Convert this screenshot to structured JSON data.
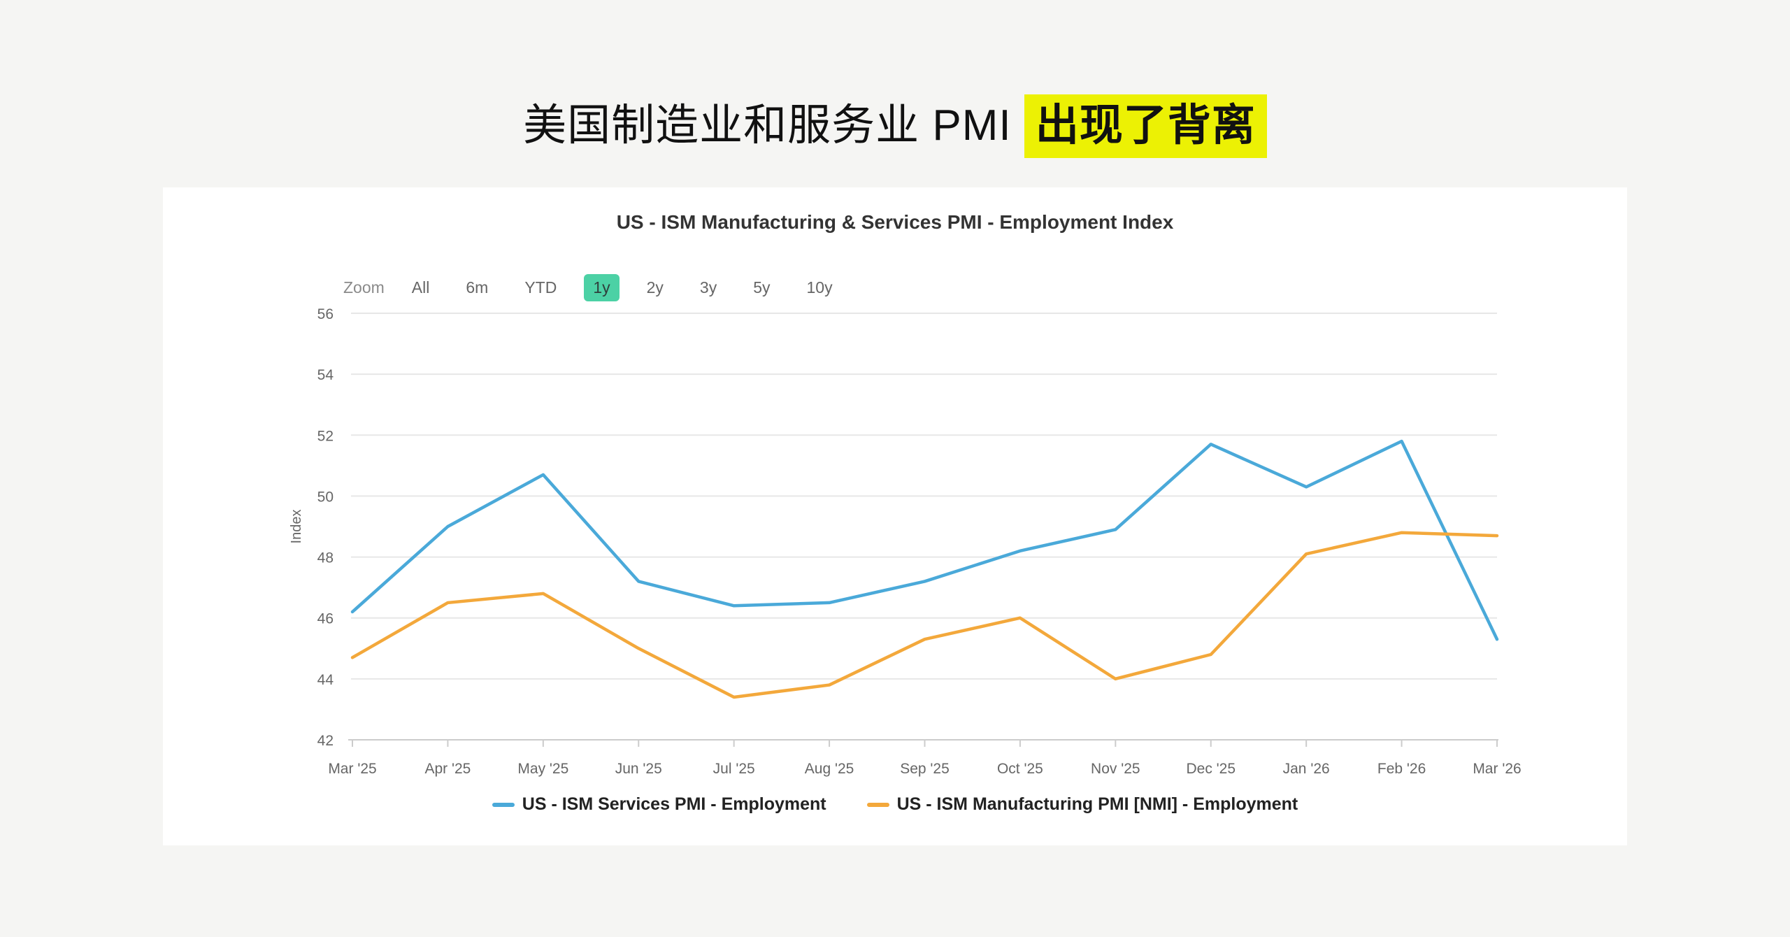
{
  "page_title": {
    "prefix": "美国制造业和服务业 PMI ",
    "highlight": "出现了背离",
    "highlight_bg": "#ECF104"
  },
  "chart": {
    "title": "US - ISM Manufacturing & Services PMI - Employment Index",
    "toolbar": {
      "zoom_label": "Zoom",
      "buttons": [
        "All",
        "6m",
        "YTD",
        "1y",
        "2y",
        "3y",
        "5y",
        "10y"
      ],
      "selected": "1y",
      "selected_bg": "#4CD1A5"
    }
  },
  "chart_data": {
    "type": "line",
    "title": "US - ISM Manufacturing & Services PMI - Employment Index",
    "categories": [
      "Mar '25",
      "Apr '25",
      "May '25",
      "Jun '25",
      "Jul '25",
      "Aug '25",
      "Sep '25",
      "Oct '25",
      "Nov '25",
      "Dec '25",
      "Jan '26",
      "Feb '26",
      "Mar '26"
    ],
    "series": [
      {
        "name": "US - ISM Services PMI - Employment",
        "color": "#4AA9D9",
        "values": [
          46.2,
          49.0,
          50.7,
          47.2,
          46.4,
          46.5,
          47.2,
          48.2,
          48.9,
          51.7,
          50.3,
          51.8,
          45.3
        ]
      },
      {
        "name": "US - ISM Manufacturing PMI [NMI] - Employment",
        "color": "#F3A83B",
        "values": [
          44.7,
          46.5,
          46.8,
          45.0,
          43.4,
          43.8,
          45.3,
          46.0,
          44.0,
          44.8,
          48.1,
          48.8,
          48.7
        ]
      }
    ],
    "xlabel": "",
    "ylabel": "Index",
    "ylim": [
      42,
      56
    ],
    "yticks": [
      42,
      44,
      46,
      48,
      50,
      52,
      54,
      56
    ],
    "grid": true,
    "legend_position": "bottom"
  }
}
